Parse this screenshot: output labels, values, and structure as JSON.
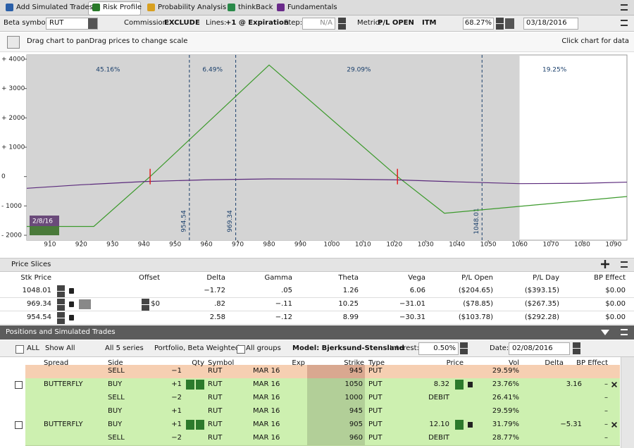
{
  "tabs": [
    "Add Simulated Trades",
    "Risk Profile",
    "Probability Analysis",
    "thinkBack",
    "Fundamentals"
  ],
  "toolbar": {
    "beta_label": "Beta symbol:",
    "beta_symbol": "RUT",
    "commission_label": "Commission:",
    "commission": "EXCLUDE",
    "lines_label": "Lines:",
    "lines": "+1 @ Expiration",
    "step_label": "Step:",
    "step": "N/A",
    "metric_label": "Metric:",
    "metric": "P/L OPEN",
    "itm_label": "ITM",
    "itm": "68.27%",
    "date": "03/18/2016"
  },
  "hint": "Drag chart to panDrag prices to change scale",
  "hint_right": "Click chart for data",
  "risk_chart": {
    "xlim": [
      902.6,
      1094.3
    ],
    "ylim": [
      -2168,
      4144
    ],
    "xticks": [
      910,
      920,
      930,
      940,
      950,
      960,
      970,
      980,
      990,
      1000,
      1010,
      1020,
      1030,
      1040,
      1050,
      1060,
      1070,
      1080,
      1090
    ],
    "yticks": [
      {
        "value": 4000,
        "label": "+ 4000"
      },
      {
        "value": 3000,
        "label": "+ 3000"
      },
      {
        "value": 2000,
        "label": "+ 2000"
      },
      {
        "value": 1000,
        "label": "+ 1000"
      },
      0,
      {
        "value": -1000,
        "label": "- 1000"
      },
      {
        "value": -2000,
        "label": "- 2000"
      }
    ],
    "price_levels": [
      954.54,
      969.34,
      1048.01
    ],
    "price_level_labels": [
      "954.54",
      "969.34",
      "1048.01"
    ],
    "probabilities": [
      "45.16%",
      "6.49%",
      "29.09%",
      "19.25%"
    ],
    "shaded_until": 1060,
    "breakevens": [
      942,
      1021
    ],
    "date_label": "2/8/16",
    "series": [
      {
        "color": "#3c9a2c",
        "x": [
          902.6,
          924,
          942,
          980,
          1021,
          1036,
          1094.3
        ],
        "values": [
          -1700,
          -1700,
          0,
          3800,
          0,
          -1250,
          -680
        ]
      },
      {
        "color": "#5b2a7c",
        "x": [
          902.6,
          920,
          940,
          960,
          980,
          1000,
          1020,
          1040,
          1060,
          1080,
          1094.3
        ],
        "values": [
          -400,
          -280,
          -170,
          -110,
          -80,
          -85,
          -110,
          -180,
          -240,
          -230,
          -190
        ]
      }
    ]
  },
  "price_slices": {
    "title": "Price Slices",
    "columns": [
      "Stk Price",
      "Offset",
      "Delta",
      "Gamma",
      "Theta",
      "Vega",
      "P/L Open",
      "P/L Day",
      "BP Effect"
    ],
    "rows": [
      {
        "stk": "1048.01",
        "delta": "−1.72",
        "gamma": ".05",
        "theta": "1.26",
        "vega": "6.06",
        "plopen": "($204.65)",
        "plday": "($393.15)",
        "bp": "$0.00"
      },
      {
        "stk": "969.34",
        "offset": "$0",
        "delta": ".82",
        "gamma": "−.11",
        "theta": "10.25",
        "vega": "−31.01",
        "plopen": "($78.85)",
        "plday": "($267.35)",
        "bp": "$0.00"
      },
      {
        "stk": "954.54",
        "delta": "2.58",
        "gamma": "−.12",
        "theta": "8.99",
        "vega": "−30.31",
        "plopen": "($103.78)",
        "plday": "($292.28)",
        "bp": "$0.00"
      }
    ]
  },
  "positions": {
    "title": "Positions and Simulated Trades",
    "filters": {
      "all": "ALL",
      "show": "Show All",
      "series": "All 5 series",
      "portfolio": "Portfolio, Beta Weighted",
      "groups": "All groups",
      "model": "Model: Bjerksund-Stensland",
      "interest_label": "Interest:",
      "interest": "0.50%",
      "date_label": "Date:",
      "date": "02/08/2016"
    },
    "columns": [
      "Spread",
      "Side",
      "Qty",
      "Symbol",
      "Exp",
      "Strike",
      "Type",
      "Price",
      "Vol",
      "Delta",
      "BP Effect"
    ],
    "rows": [
      {
        "side": "SELL",
        "qty": "−1",
        "symbol": "RUT",
        "exp": "MAR 16",
        "strike": "945",
        "type": "PUT",
        "vol": "29.59%"
      },
      {
        "spread": "BUTTERFLY",
        "side": "BUY",
        "qty": "+1",
        "symbol": "RUT",
        "exp": "MAR 16",
        "strike": "1050",
        "type": "PUT",
        "price": "8.32",
        "vol": "23.76%",
        "delta": "3.16",
        "bp": "–"
      },
      {
        "side": "SELL",
        "qty": "−2",
        "symbol": "RUT",
        "exp": "MAR 16",
        "strike": "1000",
        "type": "PUT",
        "price": "DEBIT",
        "vol": "26.41%",
        "bp": "–"
      },
      {
        "side": "BUY",
        "qty": "+1",
        "symbol": "RUT",
        "exp": "MAR 16",
        "strike": "945",
        "type": "PUT",
        "vol": "29.59%",
        "bp": "–"
      },
      {
        "spread": "BUTTERFLY",
        "side": "BUY",
        "qty": "+1",
        "symbol": "RUT",
        "exp": "MAR 16",
        "strike": "905",
        "type": "PUT",
        "price": "12.10",
        "vol": "31.79%",
        "delta": "−5.31",
        "bp": "–"
      },
      {
        "side": "SELL",
        "qty": "−2",
        "symbol": "RUT",
        "exp": "MAR 16",
        "strike": "960",
        "type": "PUT",
        "price": "DEBIT",
        "vol": "28.77%",
        "bp": "–"
      }
    ]
  }
}
